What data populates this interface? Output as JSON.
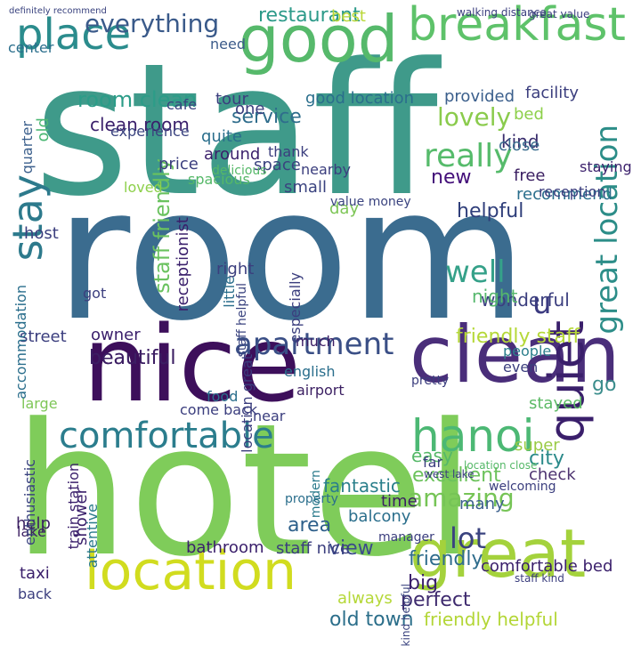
{
  "words": [
    {
      "text": "staff",
      "color": "#3f9a8a"
    },
    {
      "text": "room",
      "color": "#3b6c8f"
    },
    {
      "text": "hotel",
      "color": "#7fcc5a"
    },
    {
      "text": "nice",
      "color": "#3d0f5b"
    },
    {
      "text": "good",
      "color": "#56b96b"
    },
    {
      "text": "clean",
      "color": "#4a2e7a"
    },
    {
      "text": "great",
      "color": "#a4d23c"
    },
    {
      "text": "location",
      "color": "#d1dc1f"
    },
    {
      "text": "breakfast",
      "color": "#5ec26a"
    },
    {
      "text": "place",
      "color": "#2b8c8d"
    },
    {
      "text": "stay",
      "color": "#2d7a8c"
    },
    {
      "text": "hanoi",
      "color": "#4cb874"
    },
    {
      "text": "comfortable",
      "color": "#2b7d8d"
    },
    {
      "text": "quiet",
      "color": "#3a1f6b"
    },
    {
      "text": "apartment",
      "color": "#3a4f86"
    },
    {
      "text": "everything",
      "color": "#3a5a8a"
    },
    {
      "text": "room clean",
      "color": "#2c9c88"
    },
    {
      "text": "lovely",
      "color": "#8acb4c"
    },
    {
      "text": "really",
      "color": "#56bb6b"
    },
    {
      "text": "service",
      "color": "#2f6d8c"
    },
    {
      "text": "amazing",
      "color": "#76c456"
    },
    {
      "text": "staff friendly",
      "color": "#6ac25f"
    },
    {
      "text": "well",
      "color": "#35a189"
    },
    {
      "text": "excellent",
      "color": "#6cc25c"
    },
    {
      "text": "beautiful",
      "color": "#3c1e63"
    },
    {
      "text": "friendly staff",
      "color": "#b5d838"
    },
    {
      "text": "lot",
      "color": "#3a437f"
    },
    {
      "text": "view",
      "color": "#3b4b8a"
    },
    {
      "text": "helpful",
      "color": "#2f3e7a"
    },
    {
      "text": "great location",
      "color": "#2c8d88"
    },
    {
      "text": "friendly",
      "color": "#2e6c8c"
    },
    {
      "text": "area",
      "color": "#2d5f8a"
    },
    {
      "text": "perfect",
      "color": "#3e2a6e"
    },
    {
      "text": "old town",
      "color": "#2b6e8a"
    },
    {
      "text": "friendly helpful",
      "color": "#b3d636"
    },
    {
      "text": "u",
      "color": "#3b3a80"
    },
    {
      "text": "restaurant",
      "color": "#2c9a89"
    },
    {
      "text": "clean room",
      "color": "#3a1f6b"
    },
    {
      "text": "fantastic",
      "color": "#2a7f8b"
    },
    {
      "text": "easy",
      "color": "#55b868"
    },
    {
      "text": "wonderful",
      "color": "#3b3e7e"
    },
    {
      "text": "kind",
      "color": "#3a2e6e"
    },
    {
      "text": "bed",
      "color": "#8dd04a"
    },
    {
      "text": "best",
      "color": "#b9d737"
    },
    {
      "text": "need",
      "color": "#3c5b8a"
    },
    {
      "text": "close",
      "color": "#3a6d8e"
    },
    {
      "text": "free",
      "color": "#3b1f62"
    },
    {
      "text": "recommend",
      "color": "#2a6e8c"
    },
    {
      "text": "new",
      "color": "#44107a"
    },
    {
      "text": "night",
      "color": "#55b76c"
    },
    {
      "text": "big",
      "color": "#3a1f6b"
    },
    {
      "text": "city",
      "color": "#2b8a8a"
    },
    {
      "text": "many",
      "color": "#3b5f8c"
    },
    {
      "text": "day",
      "color": "#7ec657"
    },
    {
      "text": "far",
      "color": "#3b3e7e"
    },
    {
      "text": "go",
      "color": "#3b8d8c"
    },
    {
      "text": "super",
      "color": "#9acb45"
    },
    {
      "text": "check",
      "color": "#4d3370"
    },
    {
      "text": "beautiful",
      "color": "#3c1e63"
    },
    {
      "text": "owner",
      "color": "#3a1f6b"
    },
    {
      "text": "time",
      "color": "#3b1f62"
    },
    {
      "text": "food",
      "color": "#2a6e8c"
    },
    {
      "text": "stayed",
      "color": "#5cba65"
    },
    {
      "text": "help",
      "color": "#3b1f62"
    },
    {
      "text": "taxi",
      "color": "#3a1f6b"
    },
    {
      "text": "back",
      "color": "#3b3e7e"
    },
    {
      "text": "balcony",
      "color": "#2a6e8c"
    },
    {
      "text": "street",
      "color": "#3b3e7e"
    },
    {
      "text": "much",
      "color": "#3d1f66"
    },
    {
      "text": "shower",
      "color": "#3a1f6b"
    },
    {
      "text": "airport",
      "color": "#3b1f62"
    },
    {
      "text": "people",
      "color": "#2c7f8c"
    },
    {
      "text": "even",
      "color": "#3b3e7e"
    },
    {
      "text": "english",
      "color": "#2a6e8c"
    },
    {
      "text": "pretty",
      "color": "#3b3e7e"
    },
    {
      "text": "always",
      "color": "#b5d838"
    },
    {
      "text": "bathroom",
      "color": "#3a1f6b"
    },
    {
      "text": "lake",
      "color": "#3b1f62"
    },
    {
      "text": "property",
      "color": "#2a6e8c"
    },
    {
      "text": "staff nice",
      "color": "#3b3e7e"
    },
    {
      "text": "comfortable bed",
      "color": "#3a1f6b"
    },
    {
      "text": "modern",
      "color": "#2a7a8b"
    },
    {
      "text": "large",
      "color": "#7ec657"
    },
    {
      "text": "spacious",
      "color": "#55b868"
    },
    {
      "text": "space",
      "color": "#3a437f"
    },
    {
      "text": "price",
      "color": "#3b3e7e"
    },
    {
      "text": "around",
      "color": "#3a1f6b"
    },
    {
      "text": "quite",
      "color": "#2a6e8c"
    },
    {
      "text": "host",
      "color": "#3b3e7e"
    },
    {
      "text": "right",
      "color": "#3b3e7e"
    },
    {
      "text": "little",
      "color": "#2a6e8c"
    },
    {
      "text": "receptionist",
      "color": "#3a1f6b"
    },
    {
      "text": "accommodation",
      "color": "#2a6e8c"
    },
    {
      "text": "enthusiastic",
      "color": "#3a437f"
    },
    {
      "text": "attentive",
      "color": "#2a7a8b"
    },
    {
      "text": "train station",
      "color": "#3a1f6b"
    },
    {
      "text": "near",
      "color": "#3b3e7e"
    },
    {
      "text": "provided",
      "color": "#3b5f8c"
    },
    {
      "text": "facility",
      "color": "#3b3e7e"
    },
    {
      "text": "small",
      "color": "#3a437f"
    },
    {
      "text": "nearby",
      "color": "#3b3e7e"
    },
    {
      "text": "reception",
      "color": "#3b3e7e"
    },
    {
      "text": "staying",
      "color": "#3a1f6b"
    },
    {
      "text": "center",
      "color": "#2a6e8c"
    },
    {
      "text": "cafe",
      "color": "#3a437f"
    },
    {
      "text": "one",
      "color": "#3b3e7e"
    },
    {
      "text": "tour",
      "color": "#3b3e7e"
    },
    {
      "text": "good location",
      "color": "#2a6e8c"
    },
    {
      "text": "quarter",
      "color": "#3b5f8c"
    },
    {
      "text": "old",
      "color": "#4cb874"
    },
    {
      "text": "experience",
      "color": "#3a437f"
    },
    {
      "text": "thank",
      "color": "#3b3e7e"
    },
    {
      "text": "value money",
      "color": "#3a437f"
    },
    {
      "text": "especially",
      "color": "#3b3e7e"
    },
    {
      "text": "staff helpful",
      "color": "#3a437f"
    },
    {
      "text": "location great",
      "color": "#3b3e7e"
    },
    {
      "text": "loved",
      "color": "#8dd04a"
    },
    {
      "text": "delicious",
      "color": "#55b868"
    },
    {
      "text": "got",
      "color": "#3b3e7e"
    },
    {
      "text": "come back",
      "color": "#3b3e7e"
    },
    {
      "text": "staff kind",
      "color": "#3b3e7e"
    },
    {
      "text": "welcoming",
      "color": "#3b3e7e"
    },
    {
      "text": "location close",
      "color": "#55b868"
    },
    {
      "text": "manager",
      "color": "#3b3e7e"
    },
    {
      "text": "kind helpful",
      "color": "#3a437f"
    },
    {
      "text": "west lake",
      "color": "#3b3e7e"
    },
    {
      "text": "walking distance",
      "color": "#3b3e7e"
    },
    {
      "text": "great value",
      "color": "#3b3e7e"
    },
    {
      "text": "definitely recommend",
      "color": "#3a437f"
    }
  ]
}
